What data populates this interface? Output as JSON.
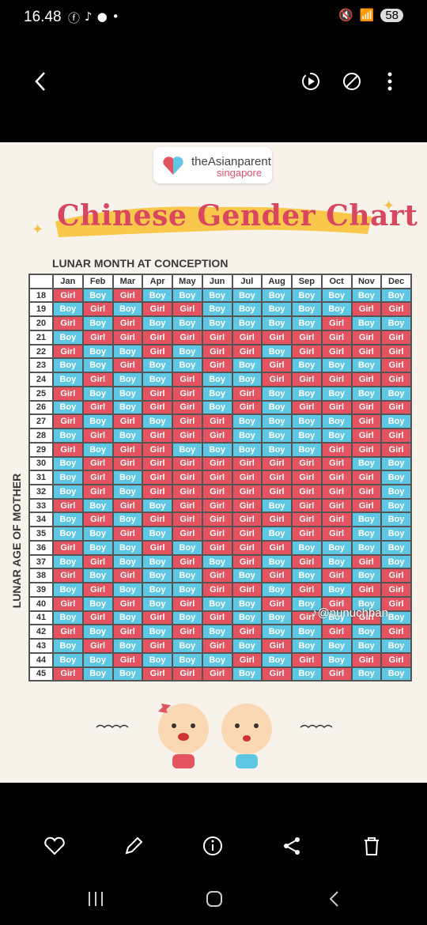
{
  "status": {
    "time": "16.48",
    "battery": "58"
  },
  "viewer": {
    "icons": [
      "back-arrow-icon",
      "motion-photo-icon",
      "rotate-icon",
      "more-icon"
    ]
  },
  "poster": {
    "brand": "theAsianparent",
    "brand_sub": "singapore",
    "title": "Chinese Gender Chart",
    "x_axis": "LUNAR MONTH AT CONCEPTION",
    "y_axis": "LUNAR AGE OF MOTHER",
    "watermark": "@nunuchban",
    "months": [
      "Jan",
      "Feb",
      "Mar",
      "Apr",
      "May",
      "Jun",
      "Jul",
      "Aug",
      "Sep",
      "Oct",
      "Nov",
      "Dec"
    ],
    "rows": [
      {
        "age": "18",
        "v": [
          "Girl",
          "Boy",
          "Girl",
          "Boy",
          "Boy",
          "Boy",
          "Boy",
          "Boy",
          "Boy",
          "Boy",
          "Boy",
          "Boy"
        ]
      },
      {
        "age": "19",
        "v": [
          "Boy",
          "Girl",
          "Boy",
          "Girl",
          "Girl",
          "Boy",
          "Boy",
          "Boy",
          "Boy",
          "Boy",
          "Girl",
          "Girl"
        ]
      },
      {
        "age": "20",
        "v": [
          "Girl",
          "Boy",
          "Girl",
          "Boy",
          "Boy",
          "Boy",
          "Boy",
          "Boy",
          "Boy",
          "Girl",
          "Boy",
          "Boy"
        ]
      },
      {
        "age": "21",
        "v": [
          "Boy",
          "Girl",
          "Girl",
          "Girl",
          "Girl",
          "Girl",
          "Girl",
          "Girl",
          "Girl",
          "Girl",
          "Girl",
          "Girl"
        ]
      },
      {
        "age": "22",
        "v": [
          "Girl",
          "Boy",
          "Boy",
          "Girl",
          "Boy",
          "Girl",
          "Girl",
          "Boy",
          "Girl",
          "Girl",
          "Girl",
          "Girl"
        ]
      },
      {
        "age": "23",
        "v": [
          "Boy",
          "Boy",
          "Girl",
          "Boy",
          "Boy",
          "Girl",
          "Boy",
          "Girl",
          "Boy",
          "Boy",
          "Boy",
          "Girl"
        ]
      },
      {
        "age": "24",
        "v": [
          "Boy",
          "Girl",
          "Boy",
          "Boy",
          "Girl",
          "Boy",
          "Boy",
          "Girl",
          "Girl",
          "Girl",
          "Girl",
          "Girl"
        ]
      },
      {
        "age": "25",
        "v": [
          "Girl",
          "Boy",
          "Boy",
          "Girl",
          "Girl",
          "Boy",
          "Girl",
          "Boy",
          "Boy",
          "Boy",
          "Boy",
          "Boy"
        ]
      },
      {
        "age": "26",
        "v": [
          "Boy",
          "Girl",
          "Boy",
          "Girl",
          "Girl",
          "Boy",
          "Girl",
          "Boy",
          "Girl",
          "Girl",
          "Girl",
          "Girl"
        ]
      },
      {
        "age": "27",
        "v": [
          "Girl",
          "Boy",
          "Girl",
          "Boy",
          "Girl",
          "Girl",
          "Boy",
          "Boy",
          "Boy",
          "Boy",
          "Girl",
          "Boy"
        ]
      },
      {
        "age": "28",
        "v": [
          "Boy",
          "Girl",
          "Boy",
          "Girl",
          "Girl",
          "Girl",
          "Boy",
          "Boy",
          "Boy",
          "Boy",
          "Girl",
          "Girl"
        ]
      },
      {
        "age": "29",
        "v": [
          "Girl",
          "Boy",
          "Girl",
          "Girl",
          "Boy",
          "Boy",
          "Boy",
          "Boy",
          "Boy",
          "Girl",
          "Girl",
          "Girl"
        ]
      },
      {
        "age": "30",
        "v": [
          "Boy",
          "Girl",
          "Girl",
          "Girl",
          "Girl",
          "Girl",
          "Girl",
          "Girl",
          "Girl",
          "Girl",
          "Boy",
          "Boy"
        ]
      },
      {
        "age": "31",
        "v": [
          "Boy",
          "Girl",
          "Boy",
          "Girl",
          "Girl",
          "Girl",
          "Girl",
          "Girl",
          "Girl",
          "Girl",
          "Girl",
          "Boy"
        ]
      },
      {
        "age": "32",
        "v": [
          "Boy",
          "Girl",
          "Boy",
          "Girl",
          "Girl",
          "Girl",
          "Girl",
          "Girl",
          "Girl",
          "Girl",
          "Girl",
          "Boy"
        ]
      },
      {
        "age": "33",
        "v": [
          "Girl",
          "Boy",
          "Girl",
          "Boy",
          "Girl",
          "Girl",
          "Girl",
          "Boy",
          "Girl",
          "Girl",
          "Girl",
          "Boy"
        ]
      },
      {
        "age": "34",
        "v": [
          "Boy",
          "Girl",
          "Boy",
          "Girl",
          "Girl",
          "Girl",
          "Girl",
          "Girl",
          "Girl",
          "Girl",
          "Boy",
          "Boy"
        ]
      },
      {
        "age": "35",
        "v": [
          "Boy",
          "Boy",
          "Girl",
          "Boy",
          "Girl",
          "Girl",
          "Girl",
          "Boy",
          "Girl",
          "Girl",
          "Boy",
          "Boy"
        ]
      },
      {
        "age": "36",
        "v": [
          "Girl",
          "Boy",
          "Boy",
          "Girl",
          "Boy",
          "Girl",
          "Girl",
          "Girl",
          "Boy",
          "Boy",
          "Boy",
          "Boy"
        ]
      },
      {
        "age": "37",
        "v": [
          "Boy",
          "Girl",
          "Boy",
          "Boy",
          "Girl",
          "Boy",
          "Girl",
          "Boy",
          "Girl",
          "Boy",
          "Girl",
          "Boy"
        ]
      },
      {
        "age": "38",
        "v": [
          "Girl",
          "Boy",
          "Girl",
          "Boy",
          "Boy",
          "Girl",
          "Boy",
          "Girl",
          "Boy",
          "Girl",
          "Boy",
          "Girl"
        ]
      },
      {
        "age": "39",
        "v": [
          "Boy",
          "Girl",
          "Boy",
          "Boy",
          "Boy",
          "Girl",
          "Girl",
          "Boy",
          "Girl",
          "Boy",
          "Girl",
          "Girl"
        ]
      },
      {
        "age": "40",
        "v": [
          "Girl",
          "Boy",
          "Girl",
          "Boy",
          "Girl",
          "Boy",
          "Boy",
          "Girl",
          "Boy",
          "Girl",
          "Boy",
          "Girl"
        ]
      },
      {
        "age": "41",
        "v": [
          "Boy",
          "Girl",
          "Boy",
          "Girl",
          "Boy",
          "Girl",
          "Boy",
          "Boy",
          "Girl",
          "Boy",
          "Girl",
          "Boy"
        ]
      },
      {
        "age": "42",
        "v": [
          "Girl",
          "Boy",
          "Girl",
          "Boy",
          "Girl",
          "Boy",
          "Girl",
          "Boy",
          "Boy",
          "Girl",
          "Boy",
          "Girl"
        ]
      },
      {
        "age": "43",
        "v": [
          "Boy",
          "Girl",
          "Boy",
          "Girl",
          "Boy",
          "Girl",
          "Boy",
          "Girl",
          "Boy",
          "Boy",
          "Boy",
          "Boy"
        ]
      },
      {
        "age": "44",
        "v": [
          "Boy",
          "Boy",
          "Girl",
          "Boy",
          "Boy",
          "Boy",
          "Girl",
          "Boy",
          "Girl",
          "Boy",
          "Girl",
          "Girl"
        ]
      },
      {
        "age": "45",
        "v": [
          "Girl",
          "Boy",
          "Boy",
          "Girl",
          "Girl",
          "Girl",
          "Boy",
          "Girl",
          "Boy",
          "Girl",
          "Boy",
          "Boy"
        ]
      }
    ]
  },
  "colors": {
    "girl": "#e4535f",
    "boy": "#5ec7e3",
    "title": "#d9465f"
  },
  "actions": [
    "favorite-icon",
    "edit-icon",
    "info-icon",
    "share-icon",
    "delete-icon"
  ],
  "navigation": [
    "recent-apps-icon",
    "home-icon",
    "back-icon"
  ]
}
